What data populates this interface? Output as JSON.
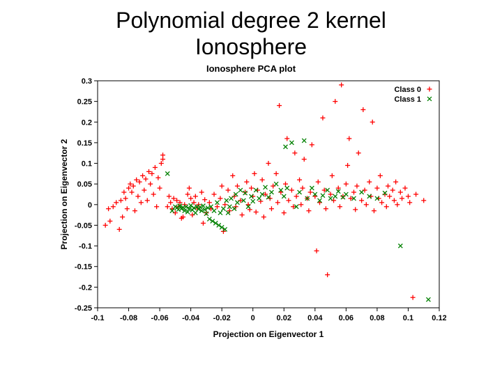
{
  "slide": {
    "title_line1": "Polynomial degree 2 kernel",
    "title_line2": "Ionosphere"
  },
  "chart": {
    "type": "scatter",
    "title": "Ionosphere PCA plot",
    "xlabel": "Projection on Eigenvector 1",
    "ylabel": "Projection on Eigenvector 2",
    "xlim": [
      -0.1,
      0.12
    ],
    "ylim": [
      -0.25,
      0.3
    ],
    "xticks": [
      -0.1,
      -0.08,
      -0.06,
      -0.04,
      -0.02,
      0,
      0.02,
      0.04,
      0.06,
      0.08,
      0.1,
      0.12
    ],
    "yticks": [
      -0.25,
      -0.2,
      -0.15,
      -0.1,
      -0.05,
      0,
      0.05,
      0.1,
      0.15,
      0.2,
      0.25,
      0.3
    ],
    "background_color": "#ffffff",
    "border_color": "#000000",
    "tick_color": "#000000",
    "marker_size": 7,
    "marker_stroke_width": 1.3,
    "legend": {
      "items": [
        {
          "label": "Class 0",
          "marker": "plus",
          "color": "#ff0000"
        },
        {
          "label": "Class 1",
          "marker": "cross",
          "color": "#008000"
        }
      ],
      "position": "top-right"
    },
    "series": [
      {
        "name": "Class 0",
        "marker": "plus",
        "color": "#ff0000",
        "points": [
          [
            -0.095,
            -0.05
          ],
          [
            -0.093,
            -0.01
          ],
          [
            -0.092,
            -0.04
          ],
          [
            -0.09,
            -0.005
          ],
          [
            -0.088,
            0.005
          ],
          [
            -0.086,
            -0.06
          ],
          [
            -0.085,
            0.01
          ],
          [
            -0.084,
            -0.03
          ],
          [
            -0.083,
            0.03
          ],
          [
            -0.082,
            0.015
          ],
          [
            -0.081,
            -0.01
          ],
          [
            -0.08,
            0.04
          ],
          [
            -0.079,
            0.05
          ],
          [
            -0.078,
            0.03
          ],
          [
            -0.077,
            0.045
          ],
          [
            -0.076,
            -0.015
          ],
          [
            -0.075,
            0.06
          ],
          [
            -0.074,
            0.02
          ],
          [
            -0.073,
            0.055
          ],
          [
            -0.072,
            0.005
          ],
          [
            -0.071,
            0.07
          ],
          [
            -0.07,
            0.035
          ],
          [
            -0.069,
            0.062
          ],
          [
            -0.068,
            0.01
          ],
          [
            -0.067,
            0.08
          ],
          [
            -0.066,
            0.05
          ],
          [
            -0.065,
            0.075
          ],
          [
            -0.064,
            0.025
          ],
          [
            -0.063,
            0.09
          ],
          [
            -0.062,
            -0.005
          ],
          [
            -0.061,
            0.065
          ],
          [
            -0.06,
            0.04
          ],
          [
            -0.059,
            0.1
          ],
          [
            -0.058,
            0.11
          ],
          [
            -0.058,
            0.12
          ],
          [
            -0.055,
            -0.005
          ],
          [
            -0.054,
            0.02
          ],
          [
            -0.053,
            0.005
          ],
          [
            -0.052,
            -0.01
          ],
          [
            -0.051,
            0.015
          ],
          [
            -0.05,
            -0.02
          ],
          [
            -0.049,
            0.01
          ],
          [
            -0.048,
            -0.005
          ],
          [
            -0.047,
            0.005
          ],
          [
            -0.046,
            -0.033
          ],
          [
            -0.045,
            -0.03
          ],
          [
            -0.044,
            0.0
          ],
          [
            -0.042,
            0.025
          ],
          [
            -0.041,
            0.04
          ],
          [
            -0.04,
            0.015
          ],
          [
            -0.039,
            -0.025
          ],
          [
            -0.038,
            0.005
          ],
          [
            -0.037,
            0.02
          ],
          [
            -0.036,
            -0.008
          ],
          [
            -0.035,
            0.0
          ],
          [
            -0.033,
            0.03
          ],
          [
            -0.032,
            -0.045
          ],
          [
            -0.031,
            0.012
          ],
          [
            -0.03,
            -0.02
          ],
          [
            -0.028,
            0.005
          ],
          [
            -0.027,
            -0.01
          ],
          [
            -0.025,
            0.025
          ],
          [
            -0.023,
            -0.005
          ],
          [
            -0.021,
            0.015
          ],
          [
            -0.02,
            0.045
          ],
          [
            -0.019,
            -0.065
          ],
          [
            -0.018,
            0.0
          ],
          [
            -0.016,
            0.035
          ],
          [
            -0.015,
            -0.015
          ],
          [
            -0.013,
            0.07
          ],
          [
            -0.012,
            0.02
          ],
          [
            -0.011,
            -0.005
          ],
          [
            -0.01,
            0.045
          ],
          [
            -0.008,
            0.01
          ],
          [
            -0.007,
            -0.025
          ],
          [
            -0.005,
            0.03
          ],
          [
            -0.004,
            0.055
          ],
          [
            -0.003,
            0.0
          ],
          [
            -0.002,
            -0.012
          ],
          [
            -0.001,
            0.04
          ],
          [
            0,
            0.02
          ],
          [
            0.001,
            0.075
          ],
          [
            0.002,
            -0.018
          ],
          [
            0.003,
            0.035
          ],
          [
            0.005,
            0.008
          ],
          [
            0.006,
            0.06
          ],
          [
            0.007,
            -0.03
          ],
          [
            0.008,
            0.025
          ],
          [
            0.01,
            0.1
          ],
          [
            0.011,
            0.015
          ],
          [
            0.012,
            -0.01
          ],
          [
            0.013,
            0.045
          ],
          [
            0.015,
            0.075
          ],
          [
            0.016,
            0.005
          ],
          [
            0.017,
            0.24
          ],
          [
            0.018,
            0.03
          ],
          [
            0.02,
            -0.02
          ],
          [
            0.021,
            0.05
          ],
          [
            0.022,
            0.16
          ],
          [
            0.023,
            0.01
          ],
          [
            0.025,
            0.035
          ],
          [
            0.026,
            -0.005
          ],
          [
            0.027,
            0.125
          ],
          [
            0.028,
            0.02
          ],
          [
            0.03,
            0.06
          ],
          [
            0.031,
            0.0
          ],
          [
            0.032,
            0.04
          ],
          [
            0.033,
            0.11
          ],
          [
            0.035,
            0.015
          ],
          [
            0.036,
            -0.015
          ],
          [
            0.037,
            0.03
          ],
          [
            0.038,
            0.145
          ],
          [
            0.04,
            0.02
          ],
          [
            0.041,
            -0.112
          ],
          [
            0.042,
            0.055
          ],
          [
            0.043,
            0.005
          ],
          [
            0.045,
            0.21
          ],
          [
            0.046,
            0.035
          ],
          [
            0.047,
            -0.01
          ],
          [
            0.048,
            -0.17
          ],
          [
            0.05,
            0.025
          ],
          [
            0.051,
            0.07
          ],
          [
            0.052,
            0.01
          ],
          [
            0.053,
            0.25
          ],
          [
            0.055,
            0.04
          ],
          [
            0.056,
            -0.005
          ],
          [
            0.057,
            0.29
          ],
          [
            0.058,
            0.02
          ],
          [
            0.06,
            0.05
          ],
          [
            0.061,
            0.095
          ],
          [
            0.062,
            0.16
          ],
          [
            0.063,
            0.015
          ],
          [
            0.065,
            0.03
          ],
          [
            0.066,
            -0.012
          ],
          [
            0.067,
            0.045
          ],
          [
            0.068,
            0.125
          ],
          [
            0.07,
            0.01
          ],
          [
            0.071,
            0.23
          ],
          [
            0.072,
            0.035
          ],
          [
            0.073,
            0.0
          ],
          [
            0.075,
            0.055
          ],
          [
            0.076,
            0.02
          ],
          [
            0.077,
            0.2
          ],
          [
            0.078,
            -0.015
          ],
          [
            0.08,
            0.04
          ],
          [
            0.081,
            0.015
          ],
          [
            0.082,
            0.07
          ],
          [
            0.083,
            0.005
          ],
          [
            0.085,
            0.025
          ],
          [
            0.086,
            -0.005
          ],
          [
            0.087,
            0.045
          ],
          [
            0.088,
            0.02
          ],
          [
            0.09,
            0.035
          ],
          [
            0.091,
            0.01
          ],
          [
            0.092,
            0.055
          ],
          [
            0.093,
            0.0
          ],
          [
            0.095,
            0.03
          ],
          [
            0.096,
            0.015
          ],
          [
            0.098,
            0.04
          ],
          [
            0.1,
            0.02
          ],
          [
            0.101,
            0.005
          ],
          [
            0.103,
            -0.225
          ],
          [
            0.105,
            0.025
          ],
          [
            0.11,
            0.01
          ]
        ]
      },
      {
        "name": "Class 1",
        "marker": "cross",
        "color": "#008000",
        "points": [
          [
            -0.055,
            0.075
          ],
          [
            -0.052,
            -0.015
          ],
          [
            -0.05,
            -0.005
          ],
          [
            -0.049,
            -0.008
          ],
          [
            -0.048,
            -0.012
          ],
          [
            -0.047,
            -0.003
          ],
          [
            -0.046,
            -0.01
          ],
          [
            -0.045,
            -0.007
          ],
          [
            -0.044,
            -0.015
          ],
          [
            -0.043,
            -0.005
          ],
          [
            -0.042,
            -0.018
          ],
          [
            -0.041,
            -0.01
          ],
          [
            -0.04,
            -0.002
          ],
          [
            -0.039,
            -0.013
          ],
          [
            -0.038,
            -0.008
          ],
          [
            -0.037,
            -0.02
          ],
          [
            -0.036,
            -0.005
          ],
          [
            -0.035,
            -0.011
          ],
          [
            -0.034,
            -0.006
          ],
          [
            -0.033,
            -0.015
          ],
          [
            -0.032,
            -0.003
          ],
          [
            -0.031,
            -0.012
          ],
          [
            -0.03,
            -0.022
          ],
          [
            -0.029,
            -0.008
          ],
          [
            -0.028,
            -0.035
          ],
          [
            -0.027,
            -0.005
          ],
          [
            -0.026,
            -0.04
          ],
          [
            -0.025,
            -0.015
          ],
          [
            -0.024,
            -0.045
          ],
          [
            -0.023,
            0.005
          ],
          [
            -0.022,
            -0.05
          ],
          [
            -0.021,
            -0.02
          ],
          [
            -0.02,
            -0.055
          ],
          [
            -0.019,
            -0.01
          ],
          [
            -0.018,
            -0.06
          ],
          [
            -0.017,
            0.01
          ],
          [
            -0.016,
            -0.02
          ],
          [
            -0.015,
            -0.005
          ],
          [
            -0.014,
            0.015
          ],
          [
            -0.012,
            -0.01
          ],
          [
            -0.011,
            0.025
          ],
          [
            -0.01,
            0.005
          ],
          [
            -0.008,
            0.035
          ],
          [
            -0.006,
            0.01
          ],
          [
            -0.005,
            0.028
          ],
          [
            -0.003,
            -0.005
          ],
          [
            -0.001,
            0.02
          ],
          [
            0,
            0.008
          ],
          [
            0.002,
            0.035
          ],
          [
            0.004,
            0.015
          ],
          [
            0.006,
            0.025
          ],
          [
            0.008,
            0.042
          ],
          [
            0.01,
            0.018
          ],
          [
            0.012,
            0.03
          ],
          [
            0.015,
            0.05
          ],
          [
            0.018,
            0.035
          ],
          [
            0.02,
            0.02
          ],
          [
            0.021,
            0.14
          ],
          [
            0.022,
            0.04
          ],
          [
            0.025,
            0.15
          ],
          [
            0.028,
            -0.005
          ],
          [
            0.03,
            0.03
          ],
          [
            0.033,
            0.155
          ],
          [
            0.035,
            0.015
          ],
          [
            0.038,
            0.04
          ],
          [
            0.04,
            0.025
          ],
          [
            0.043,
            0.01
          ],
          [
            0.045,
            0.022
          ],
          [
            0.048,
            0.035
          ],
          [
            0.05,
            0.015
          ],
          [
            0.053,
            0.02
          ],
          [
            0.055,
            0.032
          ],
          [
            0.058,
            0.018
          ],
          [
            0.06,
            0.025
          ],
          [
            0.065,
            0.015
          ],
          [
            0.07,
            0.03
          ],
          [
            0.075,
            0.02
          ],
          [
            0.08,
            0.015
          ],
          [
            0.085,
            0.028
          ],
          [
            0.095,
            -0.1
          ],
          [
            0.113,
            -0.23
          ]
        ]
      }
    ]
  }
}
